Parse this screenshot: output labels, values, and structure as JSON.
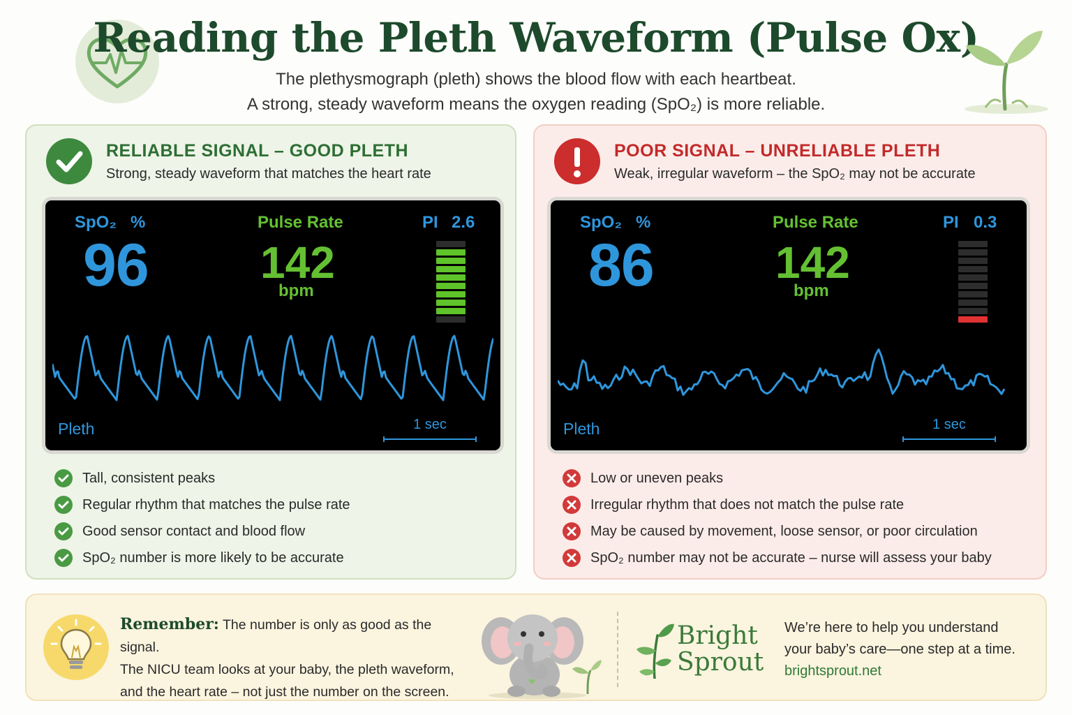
{
  "header": {
    "title": "Reading the Pleth Waveform (Pulse Ox)",
    "subtitle_line1": "The plethysmograph (pleth) shows the blood flow with each heartbeat.",
    "subtitle_line2": "A strong, steady waveform means the oxygen reading (SpO₂) is more reliable.",
    "badge_icon": "heart-pulse-icon",
    "deco_icon": "sprout-icon"
  },
  "good_panel": {
    "title": "RELIABLE SIGNAL – GOOD PLETH",
    "subtitle": "Strong, steady waveform that matches the heart rate",
    "icon": "checkmark-icon",
    "monitor": {
      "spo2_label": "SpO₂",
      "percent_label": "%",
      "spo2_value": "96",
      "pulse_label": "Pulse Rate",
      "pulse_value": "142",
      "pulse_unit": "bpm",
      "pi_label": "PI",
      "pi_value": "2.6",
      "pi_bars_lit": 8,
      "pi_bars_total": 10,
      "pleth_label": "Pleth",
      "scale_label": "1 sec"
    },
    "items": [
      "Tall, consistent peaks",
      "Regular rhythm that matches the pulse rate",
      "Good sensor contact and blood flow",
      "SpO₂ number is more likely to be accurate"
    ]
  },
  "bad_panel": {
    "title": "POOR SIGNAL – UNRELIABLE PLETH",
    "subtitle": "Weak, irregular waveform – the SpO₂ may not be accurate",
    "icon": "exclamation-icon",
    "monitor": {
      "spo2_label": "SpO₂",
      "percent_label": "%",
      "spo2_value": "86",
      "pulse_label": "Pulse Rate",
      "pulse_value": "142",
      "pulse_unit": "bpm",
      "pi_label": "PI",
      "pi_value": "0.3",
      "pi_bars_lit": 1,
      "pi_bars_total": 10,
      "pleth_label": "Pleth",
      "scale_label": "1 sec"
    },
    "items": [
      "Low or uneven peaks",
      "Irregular rhythm that does not match the pulse rate",
      "May be caused by movement, loose sensor, or poor circulation",
      "SpO₂ number may not be accurate – nurse will assess your baby"
    ]
  },
  "footer": {
    "remember_heading": "Remember:",
    "remember_text_1": "The number is only as good as the signal.",
    "remember_text_2": "The NICU team looks at your baby, the pleth waveform,",
    "remember_text_3": "and the heart rate – not just the number on the screen.",
    "bulb_icon": "lightbulb-icon",
    "mascot": "elephant-illustration",
    "brand_line1": "Bright",
    "brand_line2": "Sprout",
    "tagline_1": "We’re here to help you understand",
    "tagline_2": "your baby’s care—one step at a time.",
    "website": "brightsprout.net"
  },
  "colors": {
    "title_green": "#1d4a2c",
    "good_accent": "#3d8a3f",
    "bad_accent": "#cc2d2d",
    "monitor_blue": "#2f96dc",
    "monitor_green": "#64c032",
    "pi_red": "#e03232"
  }
}
